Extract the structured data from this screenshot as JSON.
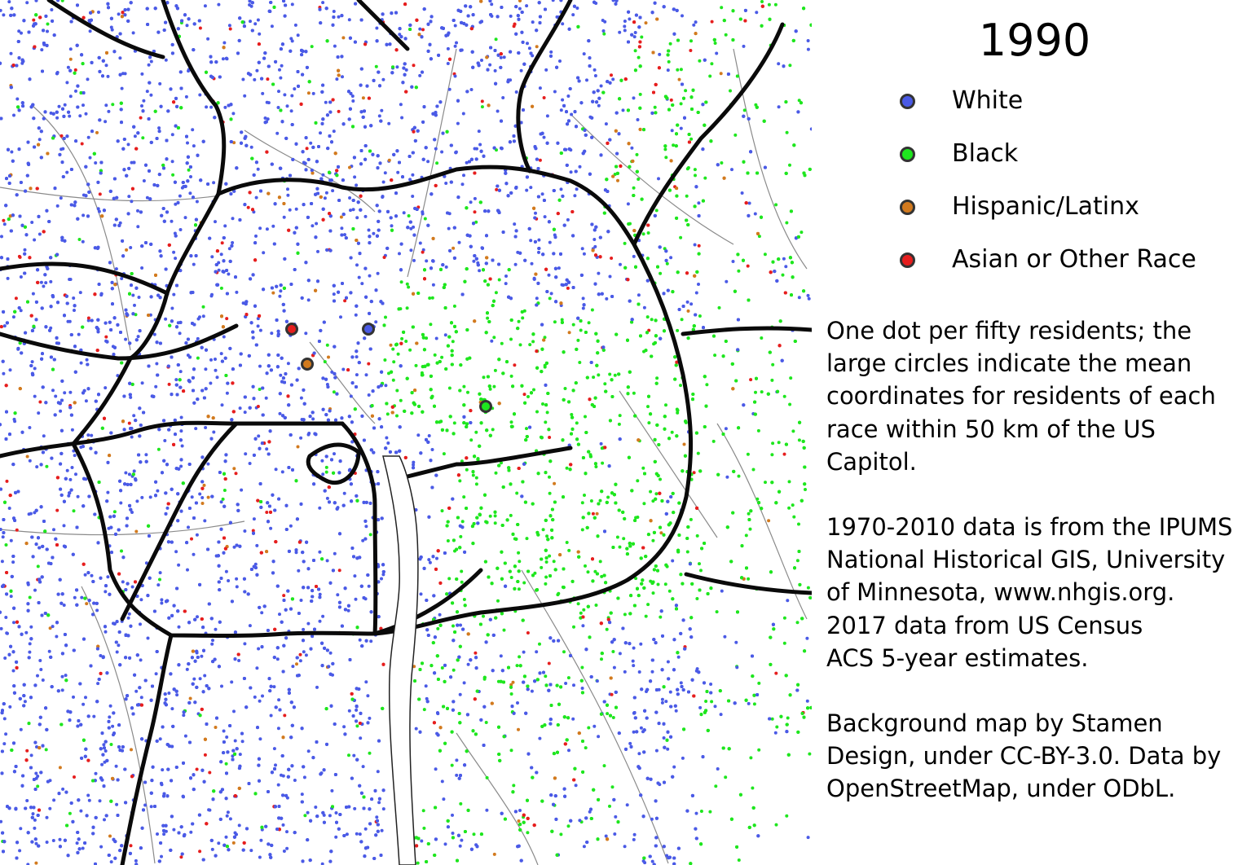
{
  "title": "1990",
  "legend": [
    {
      "label": "White",
      "color": "#4a5ae6"
    },
    {
      "label": "Black",
      "color": "#1ee61e"
    },
    {
      "label": "Hispanic/Latinx",
      "color": "#d27a1e"
    },
    {
      "label": "Asian or Other Race",
      "color": "#e61e1e"
    }
  ],
  "notes": {
    "methodology": [
      "One dot per fifty residents; the",
      "large circles indicate the mean",
      "coordinates for residents of each",
      "race within 50 km of the US",
      "Capitol."
    ],
    "sources": [
      "1970-2010 data is from the IPUMS",
      "National Historical GIS, University",
      "of Minnesota, www.nhgis.org.",
      "2017 data from US Census",
      "ACS 5-year estimates."
    ],
    "credits": [
      "Background map by Stamen",
      "Design, under CC-BY-3.0. Data by",
      "OpenStreetMap, under ODbL."
    ]
  },
  "map": {
    "type": "dot-density map",
    "dot_colors": {
      "white": "#4a5ae6",
      "black": "#1ee61e",
      "hispanic": "#d27a1e",
      "asian_other": "#e61e1e"
    },
    "mean_center_markers": [
      "White",
      "Black",
      "Hispanic/Latinx",
      "Asian or Other Race"
    ]
  }
}
